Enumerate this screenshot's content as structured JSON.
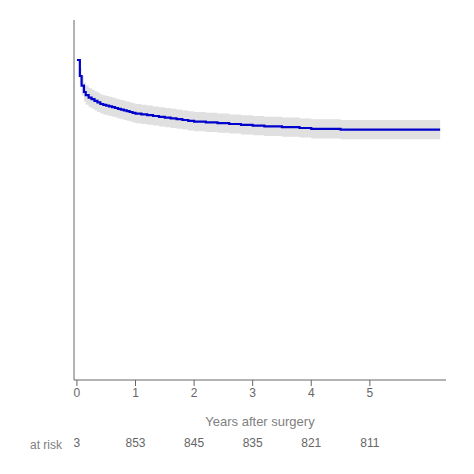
{
  "chart_data": {
    "type": "line",
    "xlabel": "Years after surgery",
    "x": [
      0.0,
      0.05,
      0.08,
      0.12,
      0.15,
      0.2,
      0.25,
      0.3,
      0.35,
      0.4,
      0.45,
      0.5,
      0.55,
      0.6,
      0.65,
      0.7,
      0.75,
      0.8,
      0.85,
      0.9,
      0.95,
      1.0,
      1.1,
      1.2,
      1.3,
      1.4,
      1.5,
      1.6,
      1.7,
      1.8,
      1.9,
      2.0,
      2.2,
      2.4,
      2.6,
      2.8,
      3.0,
      3.2,
      3.5,
      3.8,
      4.0,
      4.5,
      5.0,
      5.5,
      6.2
    ],
    "series": [
      {
        "type": "band",
        "color": "#CCCCCC",
        "line_style": "steps",
        "lower": [
          1.0,
          0.97,
          0.956,
          0.948,
          0.944,
          0.941,
          0.939,
          0.937,
          0.935,
          0.933,
          0.932,
          0.931,
          0.93,
          0.929,
          0.928,
          0.927,
          0.926,
          0.925,
          0.924,
          0.923,
          0.922,
          0.921,
          0.92,
          0.919,
          0.918,
          0.917,
          0.916,
          0.915,
          0.914,
          0.913,
          0.912,
          0.911,
          0.91,
          0.909,
          0.908,
          0.907,
          0.906,
          0.905,
          0.904,
          0.903,
          0.902,
          0.901,
          0.901,
          0.901,
          0.901
        ],
        "upper": [
          1.0,
          0.99,
          0.98,
          0.972,
          0.968,
          0.965,
          0.963,
          0.961,
          0.959,
          0.957,
          0.956,
          0.955,
          0.954,
          0.953,
          0.952,
          0.951,
          0.95,
          0.949,
          0.948,
          0.947,
          0.946,
          0.945,
          0.944,
          0.943,
          0.942,
          0.941,
          0.94,
          0.939,
          0.938,
          0.937,
          0.936,
          0.935,
          0.934,
          0.933,
          0.932,
          0.931,
          0.93,
          0.929,
          0.928,
          0.927,
          0.926,
          0.925,
          0.925,
          0.925,
          0.925
        ]
      },
      {
        "type": "line",
        "color": "#0000CC",
        "line_style": "steps",
        "values": [
          1.0,
          0.98,
          0.968,
          0.96,
          0.956,
          0.953,
          0.951,
          0.949,
          0.947,
          0.945,
          0.944,
          0.943,
          0.942,
          0.941,
          0.94,
          0.939,
          0.938,
          0.937,
          0.936,
          0.935,
          0.934,
          0.933,
          0.932,
          0.931,
          0.93,
          0.929,
          0.928,
          0.927,
          0.926,
          0.925,
          0.924,
          0.923,
          0.922,
          0.921,
          0.92,
          0.919,
          0.918,
          0.917,
          0.916,
          0.915,
          0.914,
          0.913,
          0.913,
          0.913,
          0.913
        ]
      }
    ],
    "xlim": [
      -0.05,
      6.3
    ],
    "xticks": [
      0,
      1,
      2,
      3,
      4,
      5
    ],
    "ylim": [
      0.6,
      1.05
    ],
    "tick_labels": "x",
    "grid": false,
    "at_risk": {
      "label": "at risk",
      "x": [
        0,
        1,
        2,
        3,
        4,
        5
      ],
      "values": [
        3,
        853,
        845,
        835,
        821,
        811
      ]
    }
  }
}
